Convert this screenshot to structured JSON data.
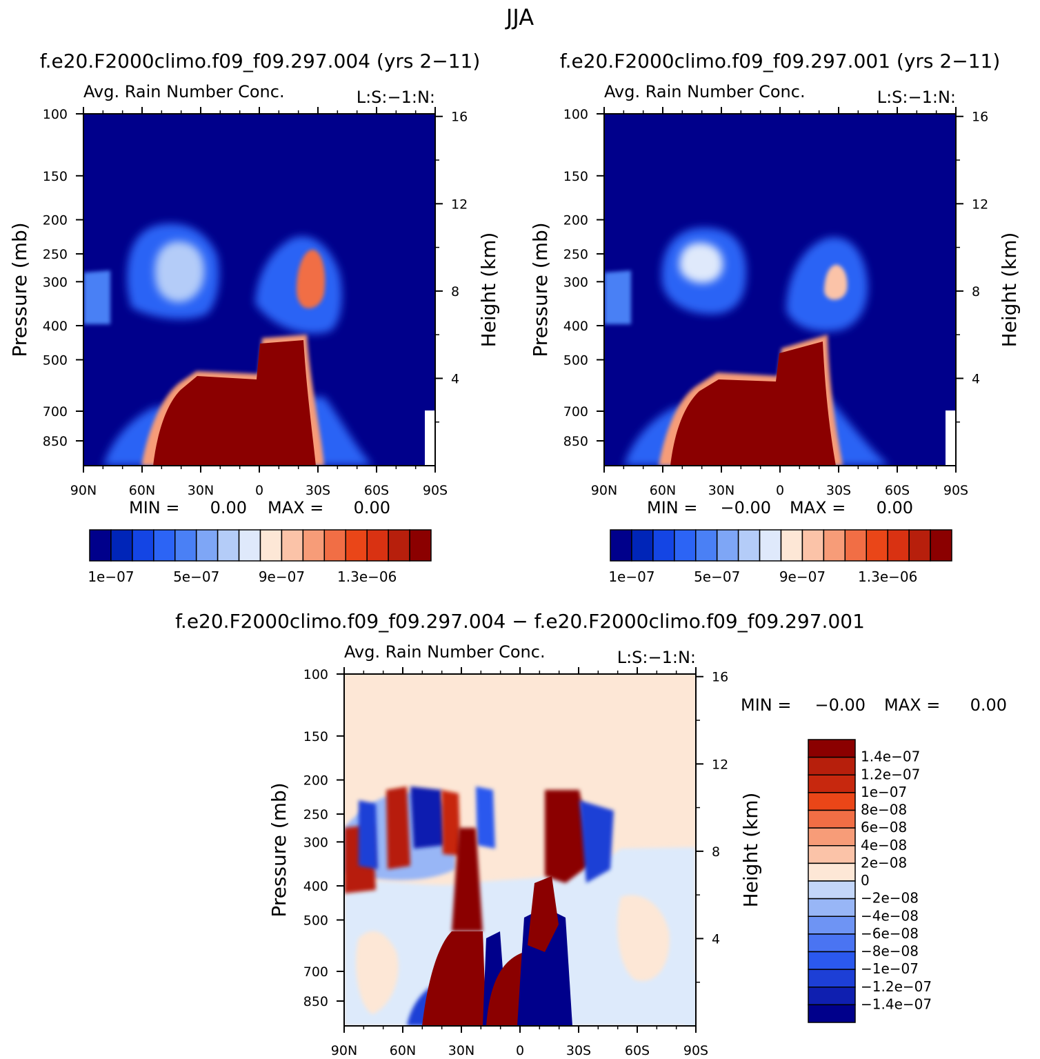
{
  "page": {
    "season": "JJA"
  },
  "colors": {
    "abs_palette": [
      "#00008b",
      "#0025b8",
      "#1445e4",
      "#2c64f5",
      "#4a80f5",
      "#7ea6f6",
      "#b4ccf8",
      "#dfe9fb",
      "#fde7d6",
      "#fbc3a8",
      "#f79c78",
      "#f16e45",
      "#ea4618",
      "#d93212",
      "#b71f0c",
      "#8b0000"
    ],
    "diff_palette": [
      "#00008b",
      "#0f1fb0",
      "#1d3fd6",
      "#2b59ee",
      "#4a74f2",
      "#6e94f4",
      "#98b6f6",
      "#c3d6f9",
      "#ddeafb",
      "#fde7d6",
      "#fbc3a8",
      "#f79c78",
      "#f16e45",
      "#ea4618",
      "#c7280e",
      "#b71f0c",
      "#8b0000"
    ]
  },
  "chart_data": [
    {
      "type": "heatmap",
      "name": "panel-case-004",
      "title": "f.e20.F2000climo.f09_f09.297.004 (yrs 2−11)",
      "left_string": "Avg. Rain Number Conc.",
      "right_string": "L:S:−1:N:",
      "ylabel": "Pressure (mb)",
      "ylabel_right": "Height (km)",
      "x_ticks": [
        "90N",
        "60N",
        "30N",
        "0",
        "30S",
        "60S",
        "90S"
      ],
      "x_tick_values": [
        90,
        60,
        30,
        0,
        -30,
        -60,
        -90
      ],
      "y_ticks": [
        100,
        150,
        200,
        250,
        300,
        400,
        500,
        700,
        850
      ],
      "y_tick_labels": [
        "100",
        "150",
        "200",
        "250",
        "300",
        "400",
        "500",
        "700",
        "850"
      ],
      "y_right_ticks": [
        16,
        12,
        8,
        4
      ],
      "y_right_tick_labels": [
        "16",
        "12",
        "8",
        "4"
      ],
      "ylim": [
        100,
        1000
      ],
      "y_scale": "log",
      "min_label": "MIN =",
      "min_value": "0.00",
      "max_label": "MAX =",
      "max_value": "0.00",
      "colorbar_orientation": "horizontal",
      "colorbar_labels": [
        "1e−07",
        "5e−07",
        "9e−07",
        "1.3e−06"
      ],
      "colorbar_levels": [
        1e-07,
        2e-07,
        3e-07,
        4e-07,
        5e-07,
        6e-07,
        7e-07,
        8e-07,
        9e-07,
        1e-06,
        1.1e-06,
        1.2e-06,
        1.3e-06,
        1.4e-06,
        1.5e-06
      ],
      "cbar_label_slots": [
        1,
        5,
        9,
        13
      ]
    },
    {
      "type": "heatmap",
      "name": "panel-case-001",
      "title": "f.e20.F2000climo.f09_f09.297.001 (yrs 2−11)",
      "left_string": "Avg. Rain Number Conc.",
      "right_string": "L:S:−1:N:",
      "ylabel": "Pressure (mb)",
      "ylabel_right": "Height (km)",
      "x_ticks": [
        "90N",
        "60N",
        "30N",
        "0",
        "30S",
        "60S",
        "90S"
      ],
      "x_tick_values": [
        90,
        60,
        30,
        0,
        -30,
        -60,
        -90
      ],
      "y_ticks": [
        100,
        150,
        200,
        250,
        300,
        400,
        500,
        700,
        850
      ],
      "y_tick_labels": [
        "100",
        "150",
        "200",
        "250",
        "300",
        "400",
        "500",
        "700",
        "850"
      ],
      "y_right_ticks": [
        16,
        12,
        8,
        4
      ],
      "y_right_tick_labels": [
        "16",
        "12",
        "8",
        "4"
      ],
      "ylim": [
        100,
        1000
      ],
      "y_scale": "log",
      "min_label": "MIN =",
      "min_value": "−0.00",
      "max_label": "MAX =",
      "max_value": "0.00",
      "colorbar_orientation": "horizontal",
      "colorbar_labels": [
        "1e−07",
        "5e−07",
        "9e−07",
        "1.3e−06"
      ],
      "colorbar_levels": [
        1e-07,
        2e-07,
        3e-07,
        4e-07,
        5e-07,
        6e-07,
        7e-07,
        8e-07,
        9e-07,
        1e-06,
        1.1e-06,
        1.2e-06,
        1.3e-06,
        1.4e-06,
        1.5e-06
      ],
      "cbar_label_slots": [
        1,
        5,
        9,
        13
      ]
    },
    {
      "type": "heatmap",
      "name": "panel-difference",
      "title": "f.e20.F2000climo.f09_f09.297.004 − f.e20.F2000climo.f09_f09.297.001",
      "left_string": "Avg. Rain Number Conc.",
      "right_string": "L:S:−1:N:",
      "ylabel": "Pressure (mb)",
      "ylabel_right": "Height (km)",
      "x_ticks": [
        "90N",
        "60N",
        "30N",
        "0",
        "30S",
        "60S",
        "90S"
      ],
      "x_tick_values": [
        90,
        60,
        30,
        0,
        -30,
        -60,
        -90
      ],
      "y_ticks": [
        100,
        150,
        200,
        250,
        300,
        400,
        500,
        700,
        850
      ],
      "y_tick_labels": [
        "100",
        "150",
        "200",
        "250",
        "300",
        "400",
        "500",
        "700",
        "850"
      ],
      "y_right_ticks": [
        16,
        12,
        8,
        4
      ],
      "y_right_tick_labels": [
        "16",
        "12",
        "8",
        "4"
      ],
      "ylim": [
        100,
        1000
      ],
      "y_scale": "log",
      "min_label": "MIN =",
      "min_value": "−0.00",
      "max_label": "MAX =",
      "max_value": "0.00",
      "colorbar_orientation": "vertical",
      "colorbar_labels": [
        "1.4e−07",
        "1.2e−07",
        "1e−07",
        "8e−08",
        "6e−08",
        "4e−08",
        "2e−08",
        "0",
        "−2e−08",
        "−4e−08",
        "−6e−08",
        "−8e−08",
        "−1e−07",
        "−1.2e−07",
        "−1.4e−07"
      ],
      "colorbar_levels": [
        1.4e-07,
        1.2e-07,
        1e-07,
        8e-08,
        6e-08,
        4e-08,
        2e-08,
        0,
        -2e-08,
        -4e-08,
        -6e-08,
        -8e-08,
        -1e-07,
        -1.2e-07,
        -1.4e-07
      ]
    }
  ]
}
